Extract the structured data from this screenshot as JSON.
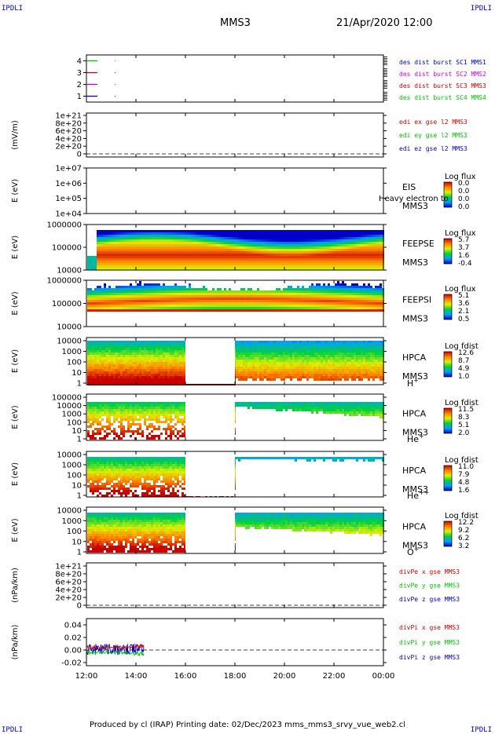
{
  "corners": {
    "tl": "IPDLI",
    "tr": "IPDLI",
    "bl": "IPDLI",
    "br": "IPDLI"
  },
  "header": {
    "spacecraft": "MMS3",
    "date": "21/Apr/2020 12:00"
  },
  "footer": "Produced by cl (IRAP)   Printing date: 02/Dec/2023   mms_mms3_srvy_vue_web2.cl",
  "x_axis": {
    "ticks": [
      "12:00",
      "14:00",
      "16:00",
      "18:00",
      "20:00",
      "22:00",
      "00:00"
    ]
  },
  "colors": {
    "red": "#d00000",
    "green": "#00c000",
    "blue": "#0000c8",
    "magenta": "#d000d0",
    "black": "#000000"
  },
  "chart_data": [
    {
      "type": "line",
      "ylim": [
        0.5,
        4.5
      ],
      "yticks": [
        "1",
        "2",
        "3",
        "4"
      ],
      "legend": [
        {
          "text": "des dist burst SC1 MMS1",
          "color": "#0000c8"
        },
        {
          "text": "des dist burst SC2 MMS2",
          "color": "#d000d0"
        },
        {
          "text": "des dist burst SC3 MMS3",
          "color": "#d00000"
        },
        {
          "text": "des dist burst SC4 MMS4",
          "color": "#00c000"
        }
      ],
      "series": [
        {
          "y": 4,
          "color": "#00c000",
          "x": [
            12.0,
            12.45
          ]
        },
        {
          "y": 3,
          "color": "#d00000",
          "x": [
            12.0,
            12.45
          ]
        },
        {
          "y": 2,
          "color": "#d000d0",
          "x": [
            12.0,
            12.45
          ]
        },
        {
          "y": 1,
          "color": "#0000c8",
          "x": [
            12.0,
            12.45
          ]
        }
      ]
    },
    {
      "type": "line",
      "ylabel": "(mV/m)",
      "yticks": [
        "0",
        "2e+20",
        "4e+20",
        "6e+20",
        "8e+20",
        "1e+21"
      ],
      "legend": [
        {
          "text": "edi ex gse l2 MMS3",
          "color": "#d00000"
        },
        {
          "text": "edi ey gse l2 MMS3",
          "color": "#00c000"
        },
        {
          "text": "edi ez gse l2 MMS3",
          "color": "#0000c8"
        }
      ]
    },
    {
      "type": "heatmap",
      "ylabel": "E (eV)",
      "yticks": [
        "1e+04",
        "1e+05",
        "1e+06",
        "1e+07"
      ],
      "instrument": "EIS",
      "instrument_sub": "MMS3",
      "overlay_text": "Heavy electron to",
      "colorbar_title": "Log flux",
      "colorbar_ticks": [
        "0.0",
        "0.0",
        "0.0",
        "0.0"
      ]
    },
    {
      "type": "heatmap",
      "ylabel": "E (eV)",
      "yticks": [
        "10000",
        "100000",
        "1000000"
      ],
      "instrument": "FEEPSE",
      "instrument_sub": "MMS3",
      "colorbar_title": "Log flux",
      "colorbar_ticks": [
        "5.7",
        "3.7",
        "1.6",
        "-0.4"
      ]
    },
    {
      "type": "heatmap",
      "ylabel": "E (eV)",
      "yticks": [
        "10000",
        "100000",
        "1000000"
      ],
      "instrument": "FEEPSI",
      "instrument_sub": "MMS3",
      "colorbar_title": "Log flux",
      "colorbar_ticks": [
        "5.1",
        "3.6",
        "2.1",
        "0.5"
      ]
    },
    {
      "type": "heatmap",
      "ylabel": "E (eV)",
      "yticks": [
        "1",
        "10",
        "100",
        "1000",
        "10000"
      ],
      "instrument": "HPCA",
      "instrument_sub": "MMS3",
      "species": "H",
      "charge": "+",
      "colorbar_title": "Log fdist",
      "colorbar_ticks": [
        "12.6",
        "8.7",
        "4.9",
        "1.0"
      ],
      "data_gap": [
        "16:00",
        "18:00"
      ]
    },
    {
      "type": "heatmap",
      "ylabel": "E (eV)",
      "yticks": [
        "1",
        "10",
        "100",
        "1000",
        "10000",
        "100000"
      ],
      "instrument": "HPCA",
      "instrument_sub": "MMS3",
      "species": "He",
      "charge": "+",
      "colorbar_title": "Log fdist",
      "colorbar_ticks": [
        "11.5",
        "8.3",
        "5.1",
        "2.0"
      ],
      "data_gap": [
        "16:00",
        "18:00"
      ]
    },
    {
      "type": "heatmap",
      "ylabel": "E (eV)",
      "yticks": [
        "1",
        "10",
        "100",
        "1000",
        "10000"
      ],
      "instrument": "HPCA",
      "instrument_sub": "MMS3",
      "species": "He",
      "charge": "++",
      "colorbar_title": "Log fdist",
      "colorbar_ticks": [
        "11.0",
        "7.9",
        "4.8",
        "1.6"
      ],
      "data_gap": [
        "16:00",
        "18:00"
      ]
    },
    {
      "type": "heatmap",
      "ylabel": "E (eV)",
      "yticks": [
        "1",
        "10",
        "100",
        "1000",
        "10000"
      ],
      "instrument": "HPCA",
      "instrument_sub": "MMS3",
      "species": "O",
      "charge": "+",
      "colorbar_title": "Log fdist",
      "colorbar_ticks": [
        "12.2",
        "9.2",
        "6.2",
        "3.2"
      ],
      "data_gap": [
        "16:00",
        "18:00"
      ]
    },
    {
      "type": "line",
      "ylabel": "(nPa/km)",
      "yticks": [
        "0",
        "2e+20",
        "4e+20",
        "6e+20",
        "8e+20",
        "1e+21"
      ],
      "legend": [
        {
          "text": "divPe x gse MMS3",
          "color": "#d00000"
        },
        {
          "text": "divPe y gse MMS3",
          "color": "#00c000"
        },
        {
          "text": "divPe z gse MMS3",
          "color": "#0000c8"
        }
      ]
    },
    {
      "type": "line",
      "ylabel": "(nPa/km)",
      "ylim": [
        -0.025,
        0.05
      ],
      "yticks": [
        "-0.02",
        "0.00",
        "0.02",
        "0.04"
      ],
      "legend": [
        {
          "text": "divPi x gse MMS3",
          "color": "#d00000"
        },
        {
          "text": "divPi y gse MMS3",
          "color": "#00c000"
        },
        {
          "text": "divPi z gse MMS3",
          "color": "#0000c8"
        }
      ],
      "x_extent": [
        "12:00",
        "14:20"
      ]
    }
  ]
}
